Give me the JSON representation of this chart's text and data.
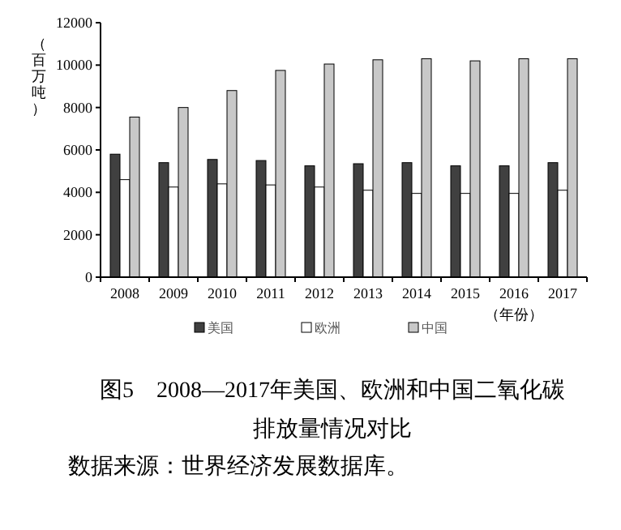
{
  "chart_data": {
    "type": "bar",
    "categories": [
      "2008",
      "2009",
      "2010",
      "2011",
      "2012",
      "2013",
      "2014",
      "2015",
      "2016",
      "2017"
    ],
    "series": [
      {
        "name": "美国",
        "color": "#404040",
        "values": [
          5800,
          5400,
          5550,
          5500,
          5250,
          5350,
          5400,
          5250,
          5250,
          5400
        ]
      },
      {
        "name": "欧洲",
        "color": "#ffffff",
        "values": [
          4600,
          4250,
          4400,
          4350,
          4250,
          4100,
          3950,
          3950,
          3950,
          4100
        ]
      },
      {
        "name": "中国",
        "color": "#c8c8c8",
        "values": [
          7550,
          8000,
          8800,
          9750,
          10050,
          10250,
          10300,
          10200,
          10300,
          10300
        ]
      }
    ],
    "ylim": [
      0,
      12000
    ],
    "yticks": [
      0,
      2000,
      4000,
      6000,
      8000,
      10000,
      12000
    ],
    "ylabel": "（百万吨）",
    "xlabel": "（年份）",
    "legend": "bottom",
    "grid": false,
    "title": "图5　2008—2017年美国、欧洲和中国二氧化碳排放量情况对比",
    "annotations": [
      "数据来源：世界经济发展数据库。"
    ]
  }
}
